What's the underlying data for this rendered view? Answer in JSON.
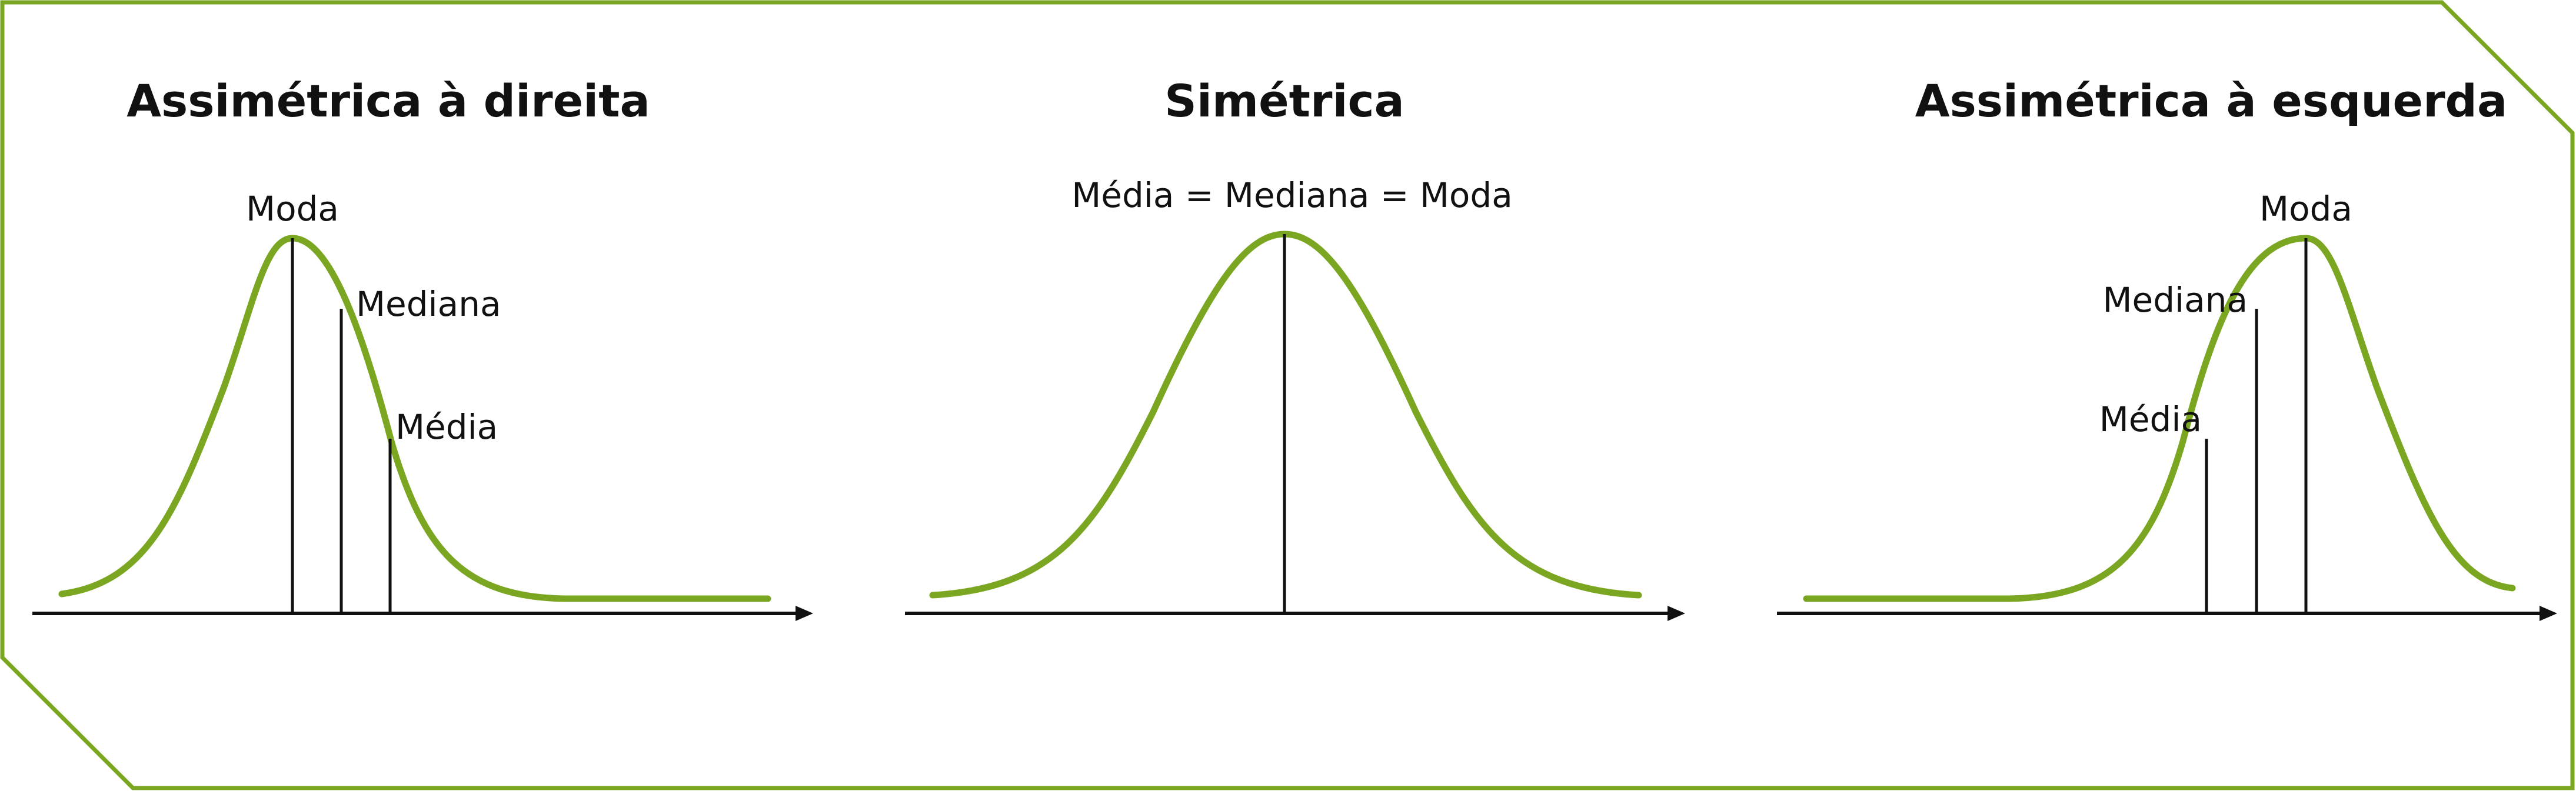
{
  "colors": {
    "curve": "#7aa622",
    "frame": "#7aa622",
    "ink": "#111111",
    "background": "#ffffff"
  },
  "panels": [
    {
      "id": "right-skewed",
      "title": "Assimétrica à direita",
      "markers": [
        {
          "label": "Moda"
        },
        {
          "label": "Mediana"
        },
        {
          "label": "Média"
        }
      ]
    },
    {
      "id": "symmetric",
      "title": "Simétrica",
      "markers": [
        {
          "label": "Média = Mediana = Moda"
        }
      ]
    },
    {
      "id": "left-skewed",
      "title": "Assimétrica à esquerda",
      "markers": [
        {
          "label": "Média"
        },
        {
          "label": "Mediana"
        },
        {
          "label": "Moda"
        }
      ]
    }
  ]
}
